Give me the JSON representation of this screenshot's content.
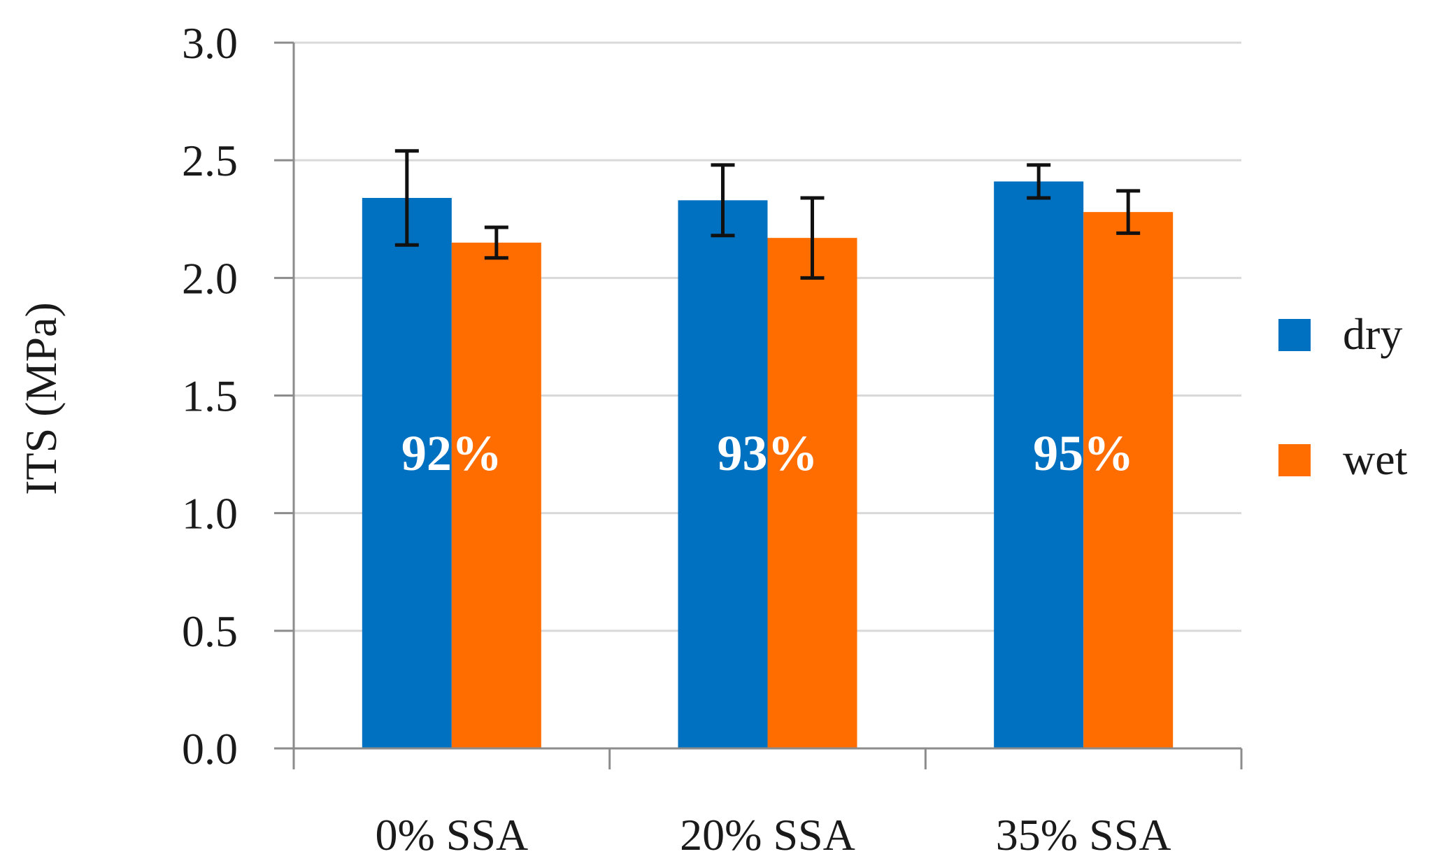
{
  "chart_data": {
    "type": "bar",
    "title": "",
    "xlabel": "",
    "ylabel": "ITS (MPa)",
    "ylim": [
      0,
      3.0
    ],
    "yticks": [
      "0.0",
      "0.5",
      "1.0",
      "1.5",
      "2.0",
      "2.5",
      "3.0"
    ],
    "grid": true,
    "legend_position": "right",
    "categories": [
      "0% SSA",
      "20% SSA",
      "35% SSA"
    ],
    "series": [
      {
        "name": "dry",
        "color": "#0070C0",
        "values": [
          2.34,
          2.33,
          2.41
        ],
        "errors": [
          0.2,
          0.15,
          0.07
        ]
      },
      {
        "name": "wet",
        "color": "#FF6D00",
        "values": [
          2.15,
          2.17,
          2.28
        ],
        "errors": [
          0.065,
          0.17,
          0.09
        ]
      }
    ],
    "annotations": [
      "92%",
      "93%",
      "95%"
    ],
    "annotation_value": 1.26
  }
}
